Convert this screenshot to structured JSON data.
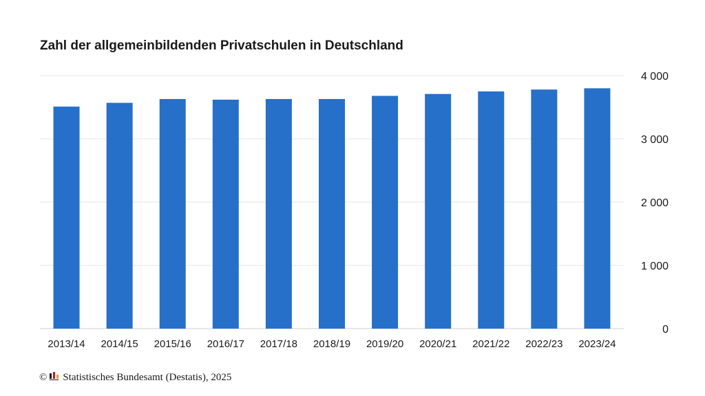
{
  "chart_data": {
    "type": "bar",
    "title": "Zahl der allgemeinbildenden Privatschulen in Deutschland",
    "categories": [
      "2013/14",
      "2014/15",
      "2015/16",
      "2016/17",
      "2017/18",
      "2018/19",
      "2019/20",
      "2020/21",
      "2021/22",
      "2022/23",
      "2023/24"
    ],
    "values": [
      3510,
      3570,
      3630,
      3620,
      3630,
      3630,
      3680,
      3710,
      3750,
      3780,
      3800
    ],
    "ylim": [
      0,
      4000
    ],
    "yticks": [
      0,
      1000,
      2000,
      3000,
      4000
    ],
    "ytick_labels": [
      "0",
      "1 000",
      "2 000",
      "3 000",
      "4 000"
    ],
    "yaxis_side": "right",
    "grid": true,
    "legend": "none",
    "bar_color": "#2670c9",
    "grid_color": "#e6e6e6"
  },
  "footer": {
    "copyright": "©",
    "logo_icon": "destatis-logo-icon",
    "source": "Statistisches Bundesamt (Destatis), 2025"
  }
}
